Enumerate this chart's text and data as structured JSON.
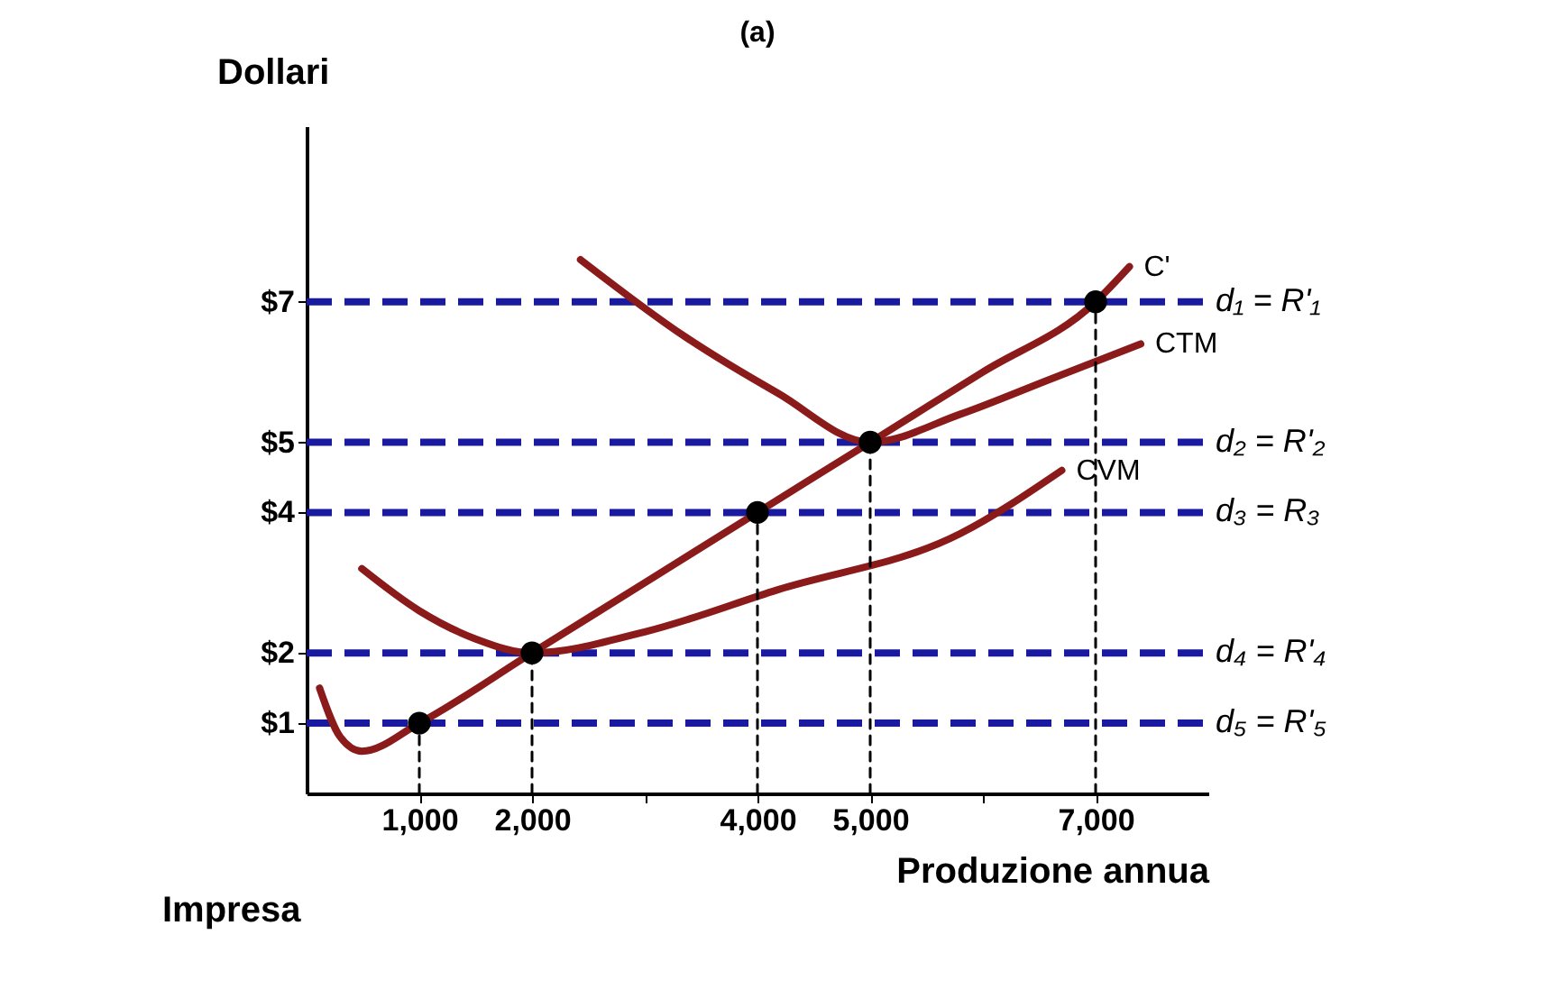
{
  "chart_data": {
    "type": "line",
    "title": "(a)",
    "xlabel": "Produzione annua",
    "ylabel": "Dollari",
    "annotations": [
      "Impresa"
    ],
    "xlim": [
      0,
      8000
    ],
    "ylim": [
      0,
      9.5
    ],
    "xticks": [
      {
        "value": 1000,
        "label": "1,000"
      },
      {
        "value": 2000,
        "label": "2,000"
      },
      {
        "value": 3000,
        "label": null
      },
      {
        "value": 4000,
        "label": "4,000"
      },
      {
        "value": 5000,
        "label": "5,000"
      },
      {
        "value": 6000,
        "label": null
      },
      {
        "value": 7000,
        "label": "7,000"
      }
    ],
    "yticks": [
      {
        "value": 1,
        "label": "$1"
      },
      {
        "value": 2,
        "label": "$2"
      },
      {
        "value": 4,
        "label": "$4"
      },
      {
        "value": 5,
        "label": "$5"
      },
      {
        "value": 7,
        "label": "$7"
      }
    ],
    "grid": false,
    "series": [
      {
        "name": "C'",
        "color": "#8b1a1a",
        "x": [
          115,
          300,
          490,
          1000,
          2000,
          3000,
          4000,
          5000,
          6000,
          7000,
          7300
        ],
        "values": [
          1.5,
          0.8,
          0.6,
          1,
          2,
          3,
          4,
          5,
          6,
          7,
          7.5
        ]
      },
      {
        "name": "CTM",
        "color": "#8b1a1a",
        "x": [
          2430,
          3360,
          4180,
          5000,
          5800,
          6600,
          7400
        ],
        "values": [
          7.6,
          6.5,
          5.7,
          5,
          5.4,
          5.9,
          6.4
        ]
      },
      {
        "name": "CVM",
        "color": "#8b1a1a",
        "x": [
          490,
          1000,
          1500,
          2000,
          3000,
          4180,
          5800,
          6700
        ],
        "values": [
          3.2,
          2.6,
          2.2,
          2,
          2.3,
          2.9,
          3.7,
          4.6
        ]
      },
      {
        "line_style": "dashed",
        "color": "#000000",
        "x": [
          1000,
          1000
        ],
        "values": [
          0,
          1
        ]
      },
      {
        "line_style": "dashed",
        "color": "#000000",
        "x": [
          2000,
          2000
        ],
        "values": [
          0,
          2
        ]
      },
      {
        "line_style": "dashed",
        "color": "#000000",
        "x": [
          4000,
          4000
        ],
        "values": [
          0,
          4
        ]
      },
      {
        "line_style": "dashed",
        "color": "#000000",
        "x": [
          5000,
          5000
        ],
        "values": [
          0,
          5
        ]
      },
      {
        "line_style": "dashed",
        "color": "#000000",
        "x": [
          7000,
          7000
        ],
        "values": [
          0,
          7
        ]
      },
      {
        "type": "scatter",
        "marker": "circle",
        "color": "#000000",
        "x": [
          1000,
          2000,
          4000,
          5000,
          7000
        ],
        "values": [
          1,
          2,
          4,
          5,
          7
        ]
      }
    ],
    "ref_lines": [
      {
        "axis": "y",
        "value": 7,
        "label": "d₁ = R'₁",
        "color": "#1a1aa0",
        "line_style": "dashed"
      },
      {
        "axis": "y",
        "value": 5,
        "label": "d₂ = R'₂",
        "color": "#1a1aa0",
        "line_style": "dashed"
      },
      {
        "axis": "y",
        "value": 4,
        "label": "d₃ = R₃",
        "color": "#1a1aa0",
        "line_style": "dashed"
      },
      {
        "axis": "y",
        "value": 2,
        "label": "d₄ = R'₄",
        "color": "#1a1aa0",
        "line_style": "dashed"
      },
      {
        "axis": "y",
        "value": 1,
        "label": "d₅ = R'₅",
        "color": "#1a1aa0",
        "line_style": "dashed"
      }
    ]
  }
}
